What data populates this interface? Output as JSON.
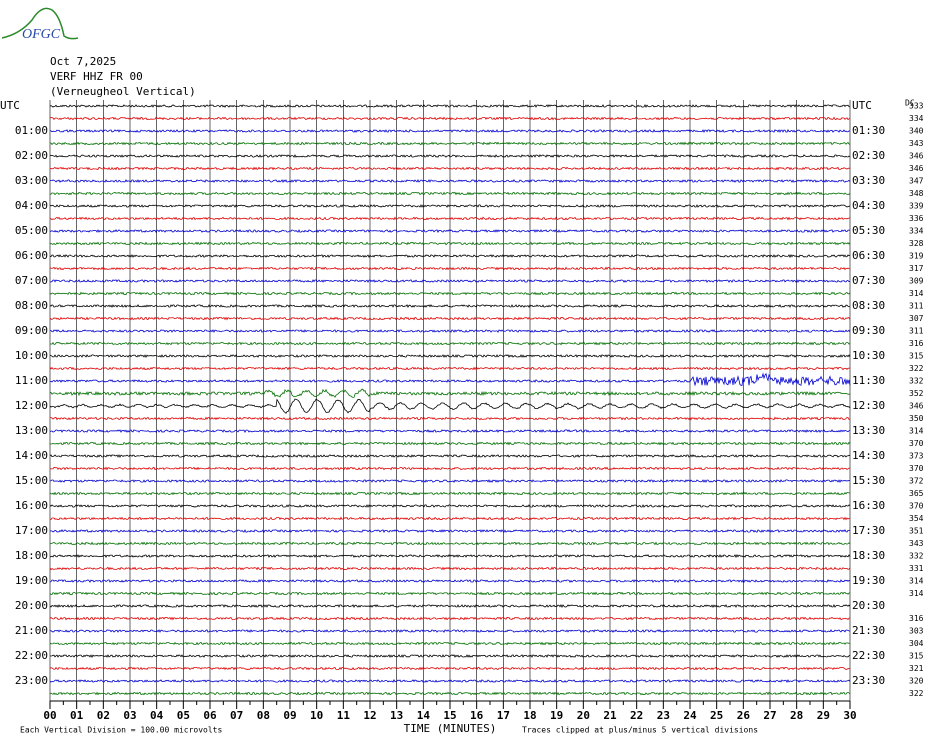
{
  "chart_data": {
    "type": "helicorder",
    "logo": "OFGC",
    "date": "Oct 7,2025",
    "station": "VERF HHZ FR 00",
    "location": "(Verneugheol Vertical)",
    "left_labels": [
      "UTC",
      "01:00",
      "02:00",
      "03:00",
      "04:00",
      "05:00",
      "06:00",
      "07:00",
      "08:00",
      "09:00",
      "10:00",
      "11:00",
      "12:00",
      "13:00",
      "14:00",
      "15:00",
      "16:00",
      "17:00",
      "18:00",
      "19:00",
      "20:00",
      "21:00",
      "22:00",
      "23:00"
    ],
    "right_labels": [
      "UTC",
      "01:30",
      "02:30",
      "03:30",
      "04:30",
      "05:30",
      "06:30",
      "07:30",
      "08:30",
      "09:30",
      "10:30",
      "11:30",
      "12:30",
      "13:30",
      "14:30",
      "15:30",
      "16:30",
      "17:30",
      "18:30",
      "19:30",
      "20:30",
      "21:30",
      "22:30",
      "23:30"
    ],
    "dc_header": "DC",
    "dc_offsets": [
      333,
      334,
      340,
      343,
      346,
      346,
      347,
      348,
      339,
      336,
      334,
      328,
      319,
      317,
      309,
      314,
      311,
      307,
      311,
      316,
      315,
      322,
      332,
      352,
      346,
      350,
      314,
      370,
      373,
      370,
      372,
      365,
      370,
      354,
      351,
      343,
      332,
      331,
      314,
      314,
      null,
      316,
      303,
      304,
      315,
      321,
      320,
      322
    ],
    "trace_colors": [
      "#000000",
      "#e00000",
      "#0000d0",
      "#007000"
    ],
    "xlim": [
      0,
      30
    ],
    "xticks": [
      {
        "value": 0,
        "label": "00"
      },
      {
        "value": 1,
        "label": "01"
      },
      {
        "value": 2,
        "label": "02"
      },
      {
        "value": 3,
        "label": "03"
      },
      {
        "value": 4,
        "label": "04"
      },
      {
        "value": 5,
        "label": "05"
      },
      {
        "value": 6,
        "label": "06"
      },
      {
        "value": 7,
        "label": "07"
      },
      {
        "value": 8,
        "label": "08"
      },
      {
        "value": 9,
        "label": "09"
      },
      10,
      11,
      12,
      13,
      14,
      15,
      16,
      17,
      18,
      19,
      20,
      21,
      22,
      23,
      24,
      25,
      26,
      27,
      28,
      29,
      30
    ],
    "xlabel": "TIME (MINUTES)",
    "scale_note": "Each Vertical Division =  100.00 microvolts",
    "clip_note": "Traces clipped at plus/minus 5 vertical divisions"
  }
}
